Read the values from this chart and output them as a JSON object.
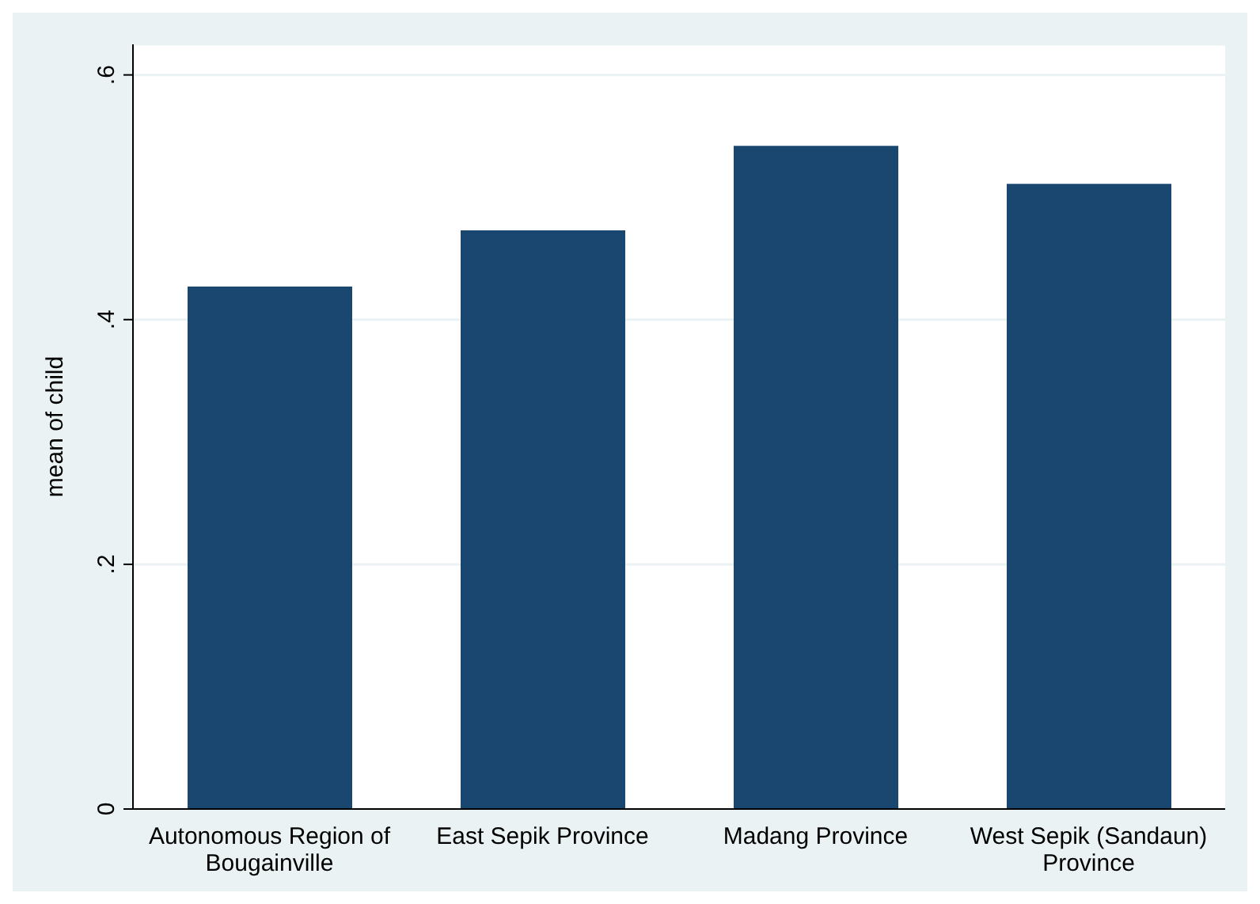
{
  "chart_data": {
    "type": "bar",
    "ylabel": "mean of child",
    "categories": [
      "Autonomous Region of Bougainville",
      "East Sepik Province",
      "Madang Province",
      "West Sepik (Sandaun) Province"
    ],
    "values": [
      0.427,
      0.473,
      0.542,
      0.511
    ],
    "color": "#1a476f",
    "ylim": [
      0,
      0.625
    ],
    "yticks": [
      {
        "value": 0,
        "label": "0"
      },
      {
        "value": 0.2,
        "label": ".2"
      },
      {
        "value": 0.4,
        "label": ".4"
      },
      {
        "value": 0.6,
        "label": ".6"
      }
    ],
    "grid": "y",
    "legend": false
  }
}
